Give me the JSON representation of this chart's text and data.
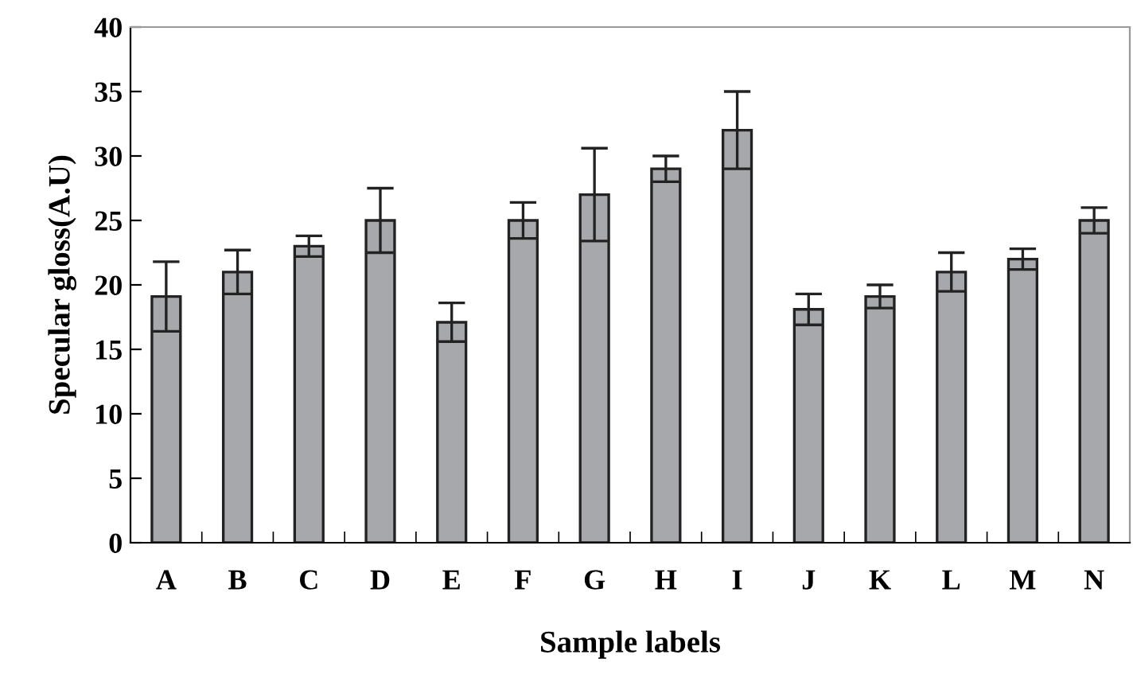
{
  "chart_data": {
    "type": "bar",
    "xlabel": "Sample labels",
    "ylabel": "Specular gloss(A.U)",
    "categories": [
      "A",
      "B",
      "C",
      "D",
      "E",
      "F",
      "G",
      "H",
      "I",
      "J",
      "K",
      "L",
      "M",
      "N"
    ],
    "values": [
      19.1,
      21,
      23,
      25,
      17.1,
      25,
      27,
      29,
      32,
      18.1,
      19.1,
      21,
      22,
      25
    ],
    "errors": [
      2.7,
      1.7,
      0.8,
      2.5,
      1.5,
      1.4,
      3.6,
      1.0,
      3.0,
      1.2,
      0.9,
      1.5,
      0.8,
      1.0
    ],
    "color": "#a6a8ab",
    "ylim": [
      0,
      40
    ],
    "yticks": [
      0,
      5,
      10,
      15,
      20,
      25,
      30,
      35,
      40
    ],
    "grid": false,
    "legend": false
  }
}
